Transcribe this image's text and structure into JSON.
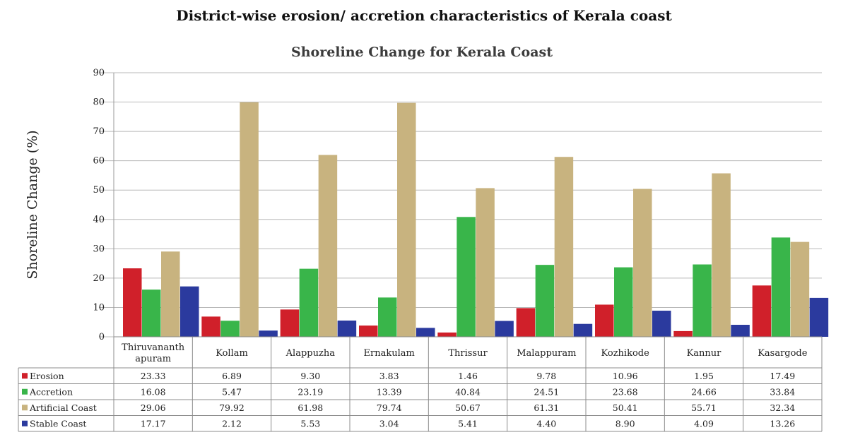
{
  "page": {
    "title": "District-wise erosion/ accretion characteristics of Kerala coast"
  },
  "chart_data": {
    "type": "bar",
    "title": "Shoreline Change for Kerala Coast",
    "ylabel": "Shoreline Change (%)",
    "xlabel": "",
    "ylim": [
      0,
      90
    ],
    "yticks": [
      0,
      10,
      20,
      30,
      40,
      50,
      60,
      70,
      80,
      90
    ],
    "grid": true,
    "legend": "data-table",
    "categories": [
      [
        "Thiruvananth",
        "apuram"
      ],
      [
        "Kollam"
      ],
      [
        "Alappuzha"
      ],
      [
        "Ernakulam"
      ],
      [
        "Thrissur"
      ],
      [
        "Malappuram"
      ],
      [
        "Kozhikode"
      ],
      [
        "Kannur"
      ],
      [
        "Kasargode"
      ]
    ],
    "series": [
      {
        "name": "Erosion",
        "color": "#d0202a",
        "values": [
          23.33,
          6.89,
          9.3,
          3.83,
          1.46,
          9.78,
          10.96,
          1.95,
          17.49
        ],
        "labels": [
          "23.33",
          "6.89",
          "9.30",
          "3.83",
          "1.46",
          "9.78",
          "10.96",
          "1.95",
          "17.49"
        ]
      },
      {
        "name": "Accretion",
        "color": "#39b54a",
        "values": [
          16.08,
          5.47,
          23.19,
          13.39,
          40.84,
          24.51,
          23.68,
          24.66,
          33.84
        ],
        "labels": [
          "16.08",
          "5.47",
          "23.19",
          "13.39",
          "40.84",
          "24.51",
          "23.68",
          "24.66",
          "33.84"
        ]
      },
      {
        "name": "Artificial Coast",
        "color": "#c8b37f",
        "values": [
          29.06,
          79.92,
          61.98,
          79.74,
          50.67,
          61.31,
          50.41,
          55.71,
          32.34
        ],
        "labels": [
          "29.06",
          "79.92",
          "61.98",
          "79.74",
          "50.67",
          "61.31",
          "50.41",
          "55.71",
          "32.34"
        ]
      },
      {
        "name": "Stable Coast",
        "color": "#2b3a9e",
        "values": [
          17.17,
          2.12,
          5.53,
          3.04,
          5.41,
          4.4,
          8.9,
          4.09,
          13.26
        ],
        "labels": [
          "17.17",
          "2.12",
          "5.53",
          "3.04",
          "5.41",
          "4.40",
          "8.90",
          "4.09",
          "13.26"
        ]
      }
    ]
  }
}
